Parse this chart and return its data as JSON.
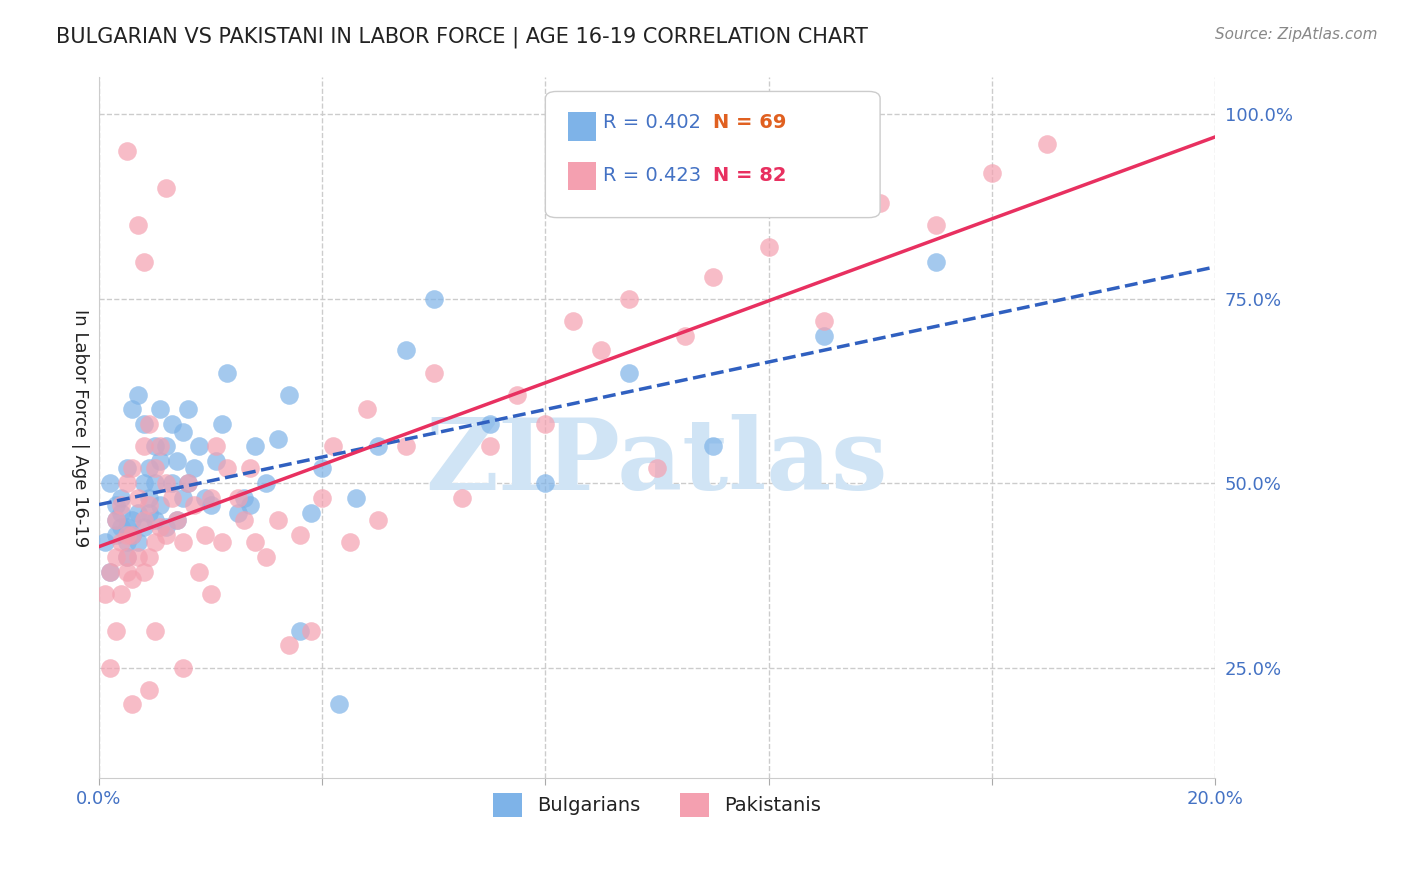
{
  "title": "BULGARIAN VS PAKISTANI IN LABOR FORCE | AGE 16-19 CORRELATION CHART",
  "source": "Source: ZipAtlas.com",
  "ylabel": "In Labor Force | Age 16-19",
  "xlabel": "",
  "xlim": [
    0.0,
    0.2
  ],
  "ylim": [
    0.1,
    1.05
  ],
  "xticks": [
    0.0,
    0.04,
    0.08,
    0.12,
    0.16,
    0.2
  ],
  "xtick_labels": [
    "0.0%",
    "",
    "",
    "",
    "",
    "20.0%"
  ],
  "yticks_right": [
    0.25,
    0.5,
    0.75,
    1.0
  ],
  "ytick_labels_right": [
    "25.0%",
    "50.0%",
    "75.0%",
    "100.0%"
  ],
  "bulgarian_R": 0.402,
  "bulgarian_N": 69,
  "pakistani_R": 0.423,
  "pakistani_N": 82,
  "bulgarian_color": "#7eb3e8",
  "pakistani_color": "#f4a0b0",
  "bulgarian_line_color": "#3060c0",
  "pakistani_line_color": "#e83060",
  "title_color": "#222222",
  "axis_label_color": "#222222",
  "tick_color": "#4472c4",
  "source_color": "#888888",
  "grid_color": "#cccccc",
  "watermark_color": "#d0e4f5",
  "legend_R_color": "#4472c4",
  "legend_N_color_bulgarian": "#4472c4",
  "legend_N_color_pakistani": "#e83060",
  "bulgarian_x": [
    0.001,
    0.002,
    0.002,
    0.003,
    0.003,
    0.003,
    0.004,
    0.004,
    0.004,
    0.005,
    0.005,
    0.005,
    0.005,
    0.006,
    0.006,
    0.006,
    0.007,
    0.007,
    0.007,
    0.008,
    0.008,
    0.008,
    0.009,
    0.009,
    0.009,
    0.01,
    0.01,
    0.01,
    0.011,
    0.011,
    0.011,
    0.012,
    0.012,
    0.013,
    0.013,
    0.014,
    0.014,
    0.015,
    0.015,
    0.016,
    0.016,
    0.017,
    0.018,
    0.019,
    0.02,
    0.021,
    0.022,
    0.023,
    0.025,
    0.026,
    0.027,
    0.028,
    0.03,
    0.032,
    0.034,
    0.036,
    0.038,
    0.04,
    0.043,
    0.046,
    0.05,
    0.055,
    0.06,
    0.07,
    0.08,
    0.095,
    0.11,
    0.13,
    0.15
  ],
  "bulgarian_y": [
    0.42,
    0.38,
    0.5,
    0.43,
    0.45,
    0.47,
    0.44,
    0.46,
    0.48,
    0.4,
    0.42,
    0.44,
    0.52,
    0.43,
    0.45,
    0.6,
    0.42,
    0.46,
    0.62,
    0.44,
    0.5,
    0.58,
    0.46,
    0.48,
    0.52,
    0.45,
    0.5,
    0.55,
    0.47,
    0.53,
    0.6,
    0.44,
    0.55,
    0.5,
    0.58,
    0.45,
    0.53,
    0.48,
    0.57,
    0.5,
    0.6,
    0.52,
    0.55,
    0.48,
    0.47,
    0.53,
    0.58,
    0.65,
    0.46,
    0.48,
    0.47,
    0.55,
    0.5,
    0.56,
    0.62,
    0.3,
    0.46,
    0.52,
    0.2,
    0.48,
    0.55,
    0.68,
    0.75,
    0.58,
    0.5,
    0.65,
    0.55,
    0.7,
    0.8
  ],
  "pakistani_x": [
    0.001,
    0.002,
    0.002,
    0.003,
    0.003,
    0.003,
    0.004,
    0.004,
    0.004,
    0.005,
    0.005,
    0.005,
    0.005,
    0.006,
    0.006,
    0.006,
    0.007,
    0.007,
    0.008,
    0.008,
    0.008,
    0.009,
    0.009,
    0.009,
    0.01,
    0.01,
    0.011,
    0.011,
    0.012,
    0.012,
    0.013,
    0.014,
    0.015,
    0.016,
    0.017,
    0.018,
    0.019,
    0.02,
    0.021,
    0.022,
    0.023,
    0.025,
    0.026,
    0.027,
    0.028,
    0.03,
    0.032,
    0.034,
    0.036,
    0.038,
    0.04,
    0.042,
    0.045,
    0.048,
    0.05,
    0.055,
    0.06,
    0.065,
    0.07,
    0.075,
    0.08,
    0.085,
    0.09,
    0.095,
    0.1,
    0.105,
    0.11,
    0.12,
    0.13,
    0.14,
    0.15,
    0.16,
    0.17,
    0.005,
    0.006,
    0.007,
    0.008,
    0.009,
    0.01,
    0.012,
    0.015,
    0.02
  ],
  "pakistani_y": [
    0.35,
    0.25,
    0.38,
    0.3,
    0.4,
    0.45,
    0.35,
    0.42,
    0.47,
    0.38,
    0.4,
    0.43,
    0.5,
    0.37,
    0.43,
    0.52,
    0.4,
    0.48,
    0.38,
    0.45,
    0.55,
    0.4,
    0.47,
    0.58,
    0.42,
    0.52,
    0.44,
    0.55,
    0.43,
    0.5,
    0.48,
    0.45,
    0.42,
    0.5,
    0.47,
    0.38,
    0.43,
    0.48,
    0.55,
    0.42,
    0.52,
    0.48,
    0.45,
    0.52,
    0.42,
    0.4,
    0.45,
    0.28,
    0.43,
    0.3,
    0.48,
    0.55,
    0.42,
    0.6,
    0.45,
    0.55,
    0.65,
    0.48,
    0.55,
    0.62,
    0.58,
    0.72,
    0.68,
    0.75,
    0.52,
    0.7,
    0.78,
    0.82,
    0.72,
    0.88,
    0.85,
    0.92,
    0.96,
    0.95,
    0.2,
    0.85,
    0.8,
    0.22,
    0.3,
    0.9,
    0.25,
    0.35
  ]
}
